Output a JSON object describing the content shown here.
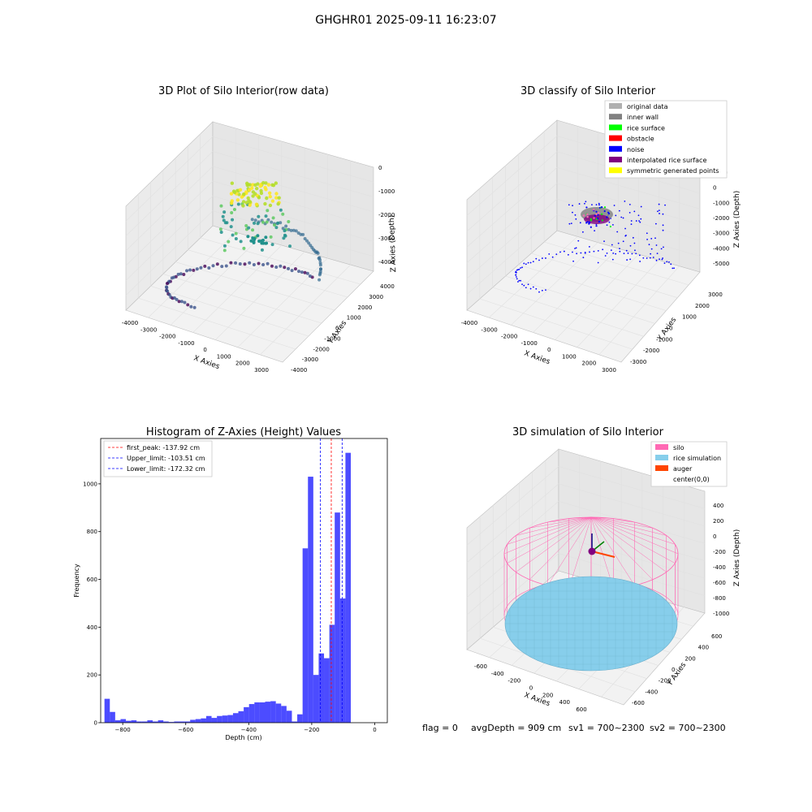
{
  "suptitle": "GHGHR01 2025-09-11 16:23:07",
  "footer": {
    "flag": "flag = 0",
    "avg_depth": "avgDepth = 909 cm",
    "sv1": "sv1 = 700~2300",
    "sv2": "sv2 = 700~2300"
  },
  "chart_data": [
    {
      "type": "scatter",
      "title": "3D Plot of Silo Interior(row data)",
      "xlabel": "X Axies",
      "ylabel": "Y Axies",
      "zlabel": "Z Axies (Depth)",
      "x_ticks": [
        "-4000",
        "-3000",
        "-2000",
        "-1000",
        "0",
        "1000",
        "2000",
        "3000"
      ],
      "y_ticks": [
        "-4000",
        "-3000",
        "-2000",
        "-1000",
        "0",
        "1000",
        "2000",
        "3000",
        "4000"
      ],
      "z_ticks": [
        "-4000",
        "-3000",
        "-2000",
        "-1000",
        "0"
      ],
      "xlim": [
        -4000,
        3500
      ],
      "ylim": [
        -4000,
        4000
      ],
      "zlim": [
        -4500,
        0
      ],
      "colormap": "viridis",
      "grid": true
    },
    {
      "type": "scatter",
      "title": "3D classify of Silo Interior",
      "xlabel": "X Axies",
      "ylabel": "Y Axies",
      "zlabel": "Z Axies (Depth)",
      "x_ticks": [
        "-4000",
        "-3000",
        "-2000",
        "-1000",
        "0",
        "1000",
        "2000",
        "3000"
      ],
      "y_ticks": [
        "-3000",
        "-2000",
        "-1000",
        "0",
        "1000",
        "2000",
        "3000"
      ],
      "z_ticks": [
        "-5000",
        "-4000",
        "-3000",
        "-2000",
        "-1000",
        "0",
        "1000"
      ],
      "xlim": [
        -4000,
        3300
      ],
      "ylim": [
        -3300,
        3300
      ],
      "zlim": [
        -5500,
        1200
      ],
      "legend_position": "top-right",
      "legend": [
        {
          "label": "original data",
          "color": "#b0b0b0"
        },
        {
          "label": "inner wall",
          "color": "#808080"
        },
        {
          "label": "rice surface",
          "color": "#00ff00"
        },
        {
          "label": "obstacle",
          "color": "#ff0000"
        },
        {
          "label": "noise",
          "color": "#0000ff"
        },
        {
          "label": "interpolated rice surface",
          "color": "#800080"
        },
        {
          "label": "symmetric generated points",
          "color": "#ffff00"
        }
      ],
      "grid": true
    },
    {
      "type": "bar",
      "title": "Histogram of Z-Axies (Height) Values",
      "xlabel": "Depth (cm)",
      "ylabel": "Frequency",
      "xlim": [
        -870,
        40
      ],
      "ylim": [
        0,
        1190
      ],
      "x_ticks": [
        -800,
        -600,
        -400,
        -200,
        0
      ],
      "y_ticks": [
        0,
        200,
        400,
        600,
        800,
        1000
      ],
      "bar_color": "#0000ff",
      "bin_width": 17,
      "bin_start": -858,
      "values": [
        100,
        45,
        10,
        15,
        8,
        10,
        5,
        5,
        10,
        5,
        10,
        5,
        3,
        5,
        5,
        5,
        12,
        15,
        18,
        28,
        20,
        28,
        30,
        32,
        40,
        48,
        65,
        78,
        85,
        85,
        88,
        90,
        80,
        70,
        50,
        5,
        35,
        730,
        1030,
        200,
        290,
        270,
        410,
        880,
        520,
        1130
      ],
      "vlines": [
        {
          "label": "first_peak: -137.92 cm",
          "x": -137.92,
          "color": "#ff0000"
        },
        {
          "label": "Upper_limit: -103.51 cm",
          "x": -103.51,
          "color": "#0000ff"
        },
        {
          "label": "Lower_limit: -172.32 cm",
          "x": -172.32,
          "color": "#0000ff"
        }
      ],
      "legend_position": "top-left",
      "grid": false
    },
    {
      "type": "surface",
      "title": "3D simulation of Silo Interior",
      "xlabel": "X Axies",
      "ylabel": "Y Axies",
      "zlabel": "Z Axies (Depth)",
      "x_ticks": [
        "-600",
        "-400",
        "-200",
        "0",
        "200",
        "400",
        "600"
      ],
      "y_ticks": [
        "-600",
        "-400",
        "-200",
        "0",
        "200",
        "400",
        "600"
      ],
      "z_ticks": [
        "-1000",
        "-800",
        "-600",
        "-400",
        "-200",
        "0",
        "200",
        "400"
      ],
      "xlim": [
        -700,
        700
      ],
      "ylim": [
        -700,
        700
      ],
      "zlim": [
        -1100,
        450
      ],
      "legend_position": "top-right",
      "legend": [
        {
          "label": "silo",
          "color": "#ff69b4"
        },
        {
          "label": "rice simulation",
          "color": "#87ceeb"
        },
        {
          "label": "auger",
          "color": "#ff4500"
        },
        {
          "label": "center(0,0)",
          "color": ""
        }
      ],
      "grid": true
    }
  ]
}
